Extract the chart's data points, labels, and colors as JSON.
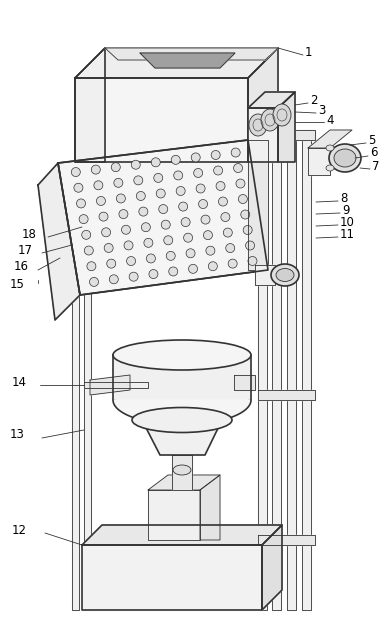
{
  "bg_color": "#ffffff",
  "line_color": "#333333",
  "figsize": [
    3.9,
    6.3
  ],
  "dpi": 100,
  "lw_main": 1.2,
  "lw_thin": 0.6,
  "label_fs": 8.5
}
